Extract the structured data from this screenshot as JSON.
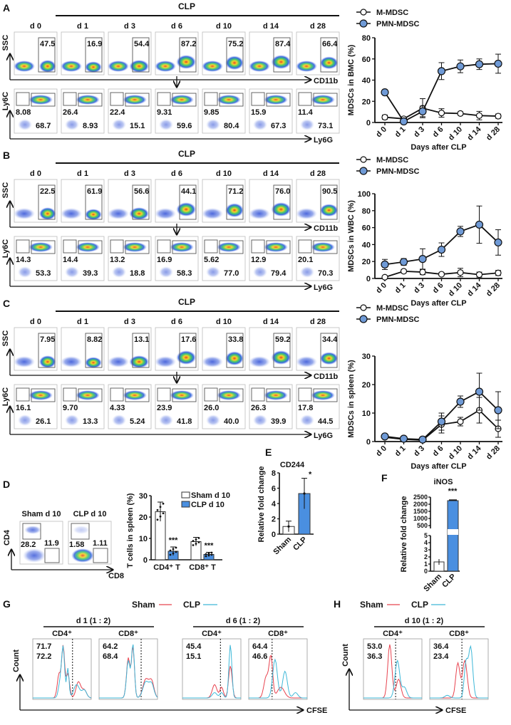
{
  "colors": {
    "m_mdsc": "#ffffff",
    "pmn_mdsc": "#6f9ad6",
    "sham_bar": "#ffffff",
    "clp_bar": "#4a8fe0",
    "sham_line": "#e8434f",
    "clp_line": "#3fb8d8",
    "sham_text": "#e0202a",
    "clp_text": "#2ba7d6"
  },
  "flow_panels": [
    {
      "label": "A",
      "group": "CLP",
      "days": [
        "d 0",
        "d 1",
        "d 3",
        "d 6",
        "d 10",
        "d 14",
        "d 28"
      ],
      "top_values": [
        "47.5",
        "16.9",
        "54.4",
        "87.2",
        "75.2",
        "87.4",
        "66.4"
      ],
      "bottom_left": [
        "8.08",
        "26.4",
        "22.4",
        "9.31",
        "9.85",
        "15.9",
        "11.4"
      ],
      "bottom_right": [
        "68.7",
        "8.93",
        "15.1",
        "59.6",
        "80.4",
        "67.3",
        "73.1"
      ],
      "y_top": "SSC",
      "x_top": "CD11b",
      "y_bottom": "Ly6C",
      "x_bottom": "Ly6G"
    },
    {
      "label": "B",
      "group": "CLP",
      "days": [
        "d 0",
        "d 1",
        "d 3",
        "d 6",
        "d 10",
        "d 14",
        "d 28"
      ],
      "top_values": [
        "22.5",
        "61.9",
        "56.6",
        "44.1",
        "71.2",
        "76.0",
        "90.5"
      ],
      "bottom_left": [
        "14.3",
        "14.4",
        "13.2",
        "16.9",
        "5.62",
        "12.9",
        "20.1"
      ],
      "bottom_right": [
        "53.3",
        "39.3",
        "18.8",
        "58.3",
        "77.0",
        "79.4",
        "70.3"
      ],
      "y_top": "SSC",
      "x_top": "CD11b",
      "y_bottom": "Ly6C",
      "x_bottom": "Ly6G"
    },
    {
      "label": "C",
      "group": "CLP",
      "days": [
        "d 0",
        "d 1",
        "d 3",
        "d 6",
        "d 10",
        "d 14",
        "d 28"
      ],
      "top_values": [
        "7.95",
        "8.82",
        "13.1",
        "17.6",
        "33.8",
        "59.2",
        "34.4"
      ],
      "bottom_left": [
        "16.1",
        "9.70",
        "4.33",
        "23.9",
        "26.0",
        "26.3",
        "17.8"
      ],
      "bottom_right": [
        "26.1",
        "13.3",
        "5.24",
        "41.8",
        "40.0",
        "39.9",
        "44.5"
      ],
      "y_top": "SSC",
      "x_top": "CD11b",
      "y_bottom": "Ly6C",
      "x_bottom": "Ly6G"
    }
  ],
  "chart_data": [
    {
      "panel": "A",
      "type": "line",
      "categories": [
        "d 0",
        "d 1",
        "d 3",
        "d 6",
        "d 10",
        "d 14",
        "d 28"
      ],
      "xlabel": "Days after CLP",
      "ylabel": "MDSCs in BMC (%)",
      "ylim": [
        0,
        80
      ],
      "yticks": [
        0,
        20,
        40,
        60,
        80
      ],
      "legend": "top-left",
      "series": [
        {
          "name": "M-MDSC",
          "values": [
            5,
            3.5,
            13.5,
            9,
            8.5,
            6.5,
            6
          ],
          "errors": [
            2,
            1,
            9,
            4,
            1.5,
            4,
            2
          ]
        },
        {
          "name": "PMN-MDSC",
          "values": [
            28.5,
            1,
            10.5,
            48.5,
            53,
            55,
            55.5
          ],
          "errors": [
            1,
            1,
            5,
            8,
            6,
            5,
            9
          ]
        }
      ]
    },
    {
      "panel": "B",
      "type": "line",
      "categories": [
        "d 0",
        "d 1",
        "d 3",
        "d 6",
        "d 10",
        "d 14",
        "d 28"
      ],
      "xlabel": "Days after CLP",
      "ylabel": "MDSCs in WBC (%)",
      "ylim": [
        0,
        100
      ],
      "yticks": [
        0,
        20,
        40,
        60,
        80,
        100
      ],
      "legend": "top-left",
      "series": [
        {
          "name": "M-MDSC",
          "values": [
            1.5,
            8.5,
            7.5,
            5,
            7,
            4.5,
            6.5
          ],
          "errors": [
            1,
            2,
            3,
            2,
            5,
            3,
            3
          ]
        },
        {
          "name": "PMN-MDSC",
          "values": [
            16.5,
            19.5,
            23,
            34,
            55.5,
            63.5,
            42.5
          ],
          "errors": [
            6,
            4,
            12,
            8,
            6,
            22,
            15
          ]
        }
      ]
    },
    {
      "panel": "C",
      "type": "line",
      "categories": [
        "d 0",
        "d 1",
        "d 3",
        "d 6",
        "d 10",
        "d 14",
        "d 28"
      ],
      "xlabel": "Days after CLP",
      "ylabel": "MDSCs in spleen (%)",
      "ylim": [
        0,
        30
      ],
      "yticks": [
        0,
        10,
        20,
        30
      ],
      "legend": "top-left",
      "series": [
        {
          "name": "M-MDSC",
          "values": [
            1.5,
            0.8,
            0.5,
            6,
            7,
            11,
            4.5
          ],
          "errors": [
            0.5,
            0.3,
            0.3,
            3,
            1.5,
            4.5,
            3
          ]
        },
        {
          "name": "PMN-MDSC",
          "values": [
            1.8,
            1,
            0.7,
            7,
            14,
            17.5,
            11
          ],
          "errors": [
            0.5,
            0.3,
            0.3,
            3,
            2,
            6.5,
            6.5
          ]
        }
      ]
    },
    {
      "panel": "D",
      "type": "bar",
      "categories": [
        "CD4⁺ T",
        "CD8⁺ T"
      ],
      "ylabel": "T cells in spleen (%)",
      "ylim": [
        0,
        30
      ],
      "yticks": [
        0,
        10,
        20,
        30
      ],
      "legend": "top-right",
      "series": [
        {
          "name": "Sham d 10",
          "values": [
            22.5,
            8.5
          ],
          "errors": [
            4.5,
            2
          ]
        },
        {
          "name": "CLP d 10",
          "values": [
            4,
            2.5
          ],
          "errors": [
            2,
            1
          ]
        }
      ],
      "significance": [
        "***",
        "***"
      ],
      "sham_marks": [
        "*",
        "*"
      ]
    },
    {
      "panel": "E",
      "type": "bar",
      "title": "CD244",
      "categories": [
        "Sham",
        "CLP"
      ],
      "ylabel": "Relative fold change",
      "ylim": [
        0,
        8
      ],
      "yticks": [
        0,
        2,
        4,
        6,
        8
      ],
      "values": [
        1.0,
        5.3
      ],
      "errors": [
        0.7,
        2.0
      ],
      "significance": [
        "",
        "*"
      ]
    },
    {
      "panel": "F",
      "type": "bar",
      "title": "iNOS",
      "categories": [
        "Sham",
        "CLP"
      ],
      "ylabel": "Relative fold change",
      "axis_break": true,
      "yticks_lower": [
        0,
        1,
        2,
        3,
        4,
        5
      ],
      "yticks_upper": [
        500,
        1000,
        1500,
        2000,
        2500
      ],
      "values": [
        1.3,
        2250
      ],
      "errors": [
        0.4,
        40
      ],
      "significance": [
        "",
        "***"
      ]
    }
  ],
  "panel_d_flow": {
    "label": "D",
    "groups": [
      "Sham d 10",
      "CLP d 10"
    ],
    "values": [
      [
        "28.2",
        "11.9"
      ],
      [
        "1.58",
        "1.11"
      ]
    ],
    "y_axis": "CD4",
    "x_axis": "CD8"
  },
  "panel_g": {
    "label": "G",
    "legend": [
      "Sham",
      "CLP"
    ],
    "y_axis": "Count",
    "x_axis": "CFSE",
    "conditions": [
      {
        "title": "d 1 (1 : 2)",
        "plots": [
          {
            "title": "CD4⁺",
            "sham": "71.7",
            "clp": "72.2"
          },
          {
            "title": "CD8⁺",
            "sham": "64.2",
            "clp": "68.4"
          }
        ]
      },
      {
        "title": "d 6 (1 : 2)",
        "plots": [
          {
            "title": "CD4⁺",
            "sham": "45.4",
            "clp": "15.1"
          },
          {
            "title": "CD8⁺",
            "sham": "64.4",
            "clp": "46.6"
          }
        ]
      }
    ]
  },
  "panel_h": {
    "label": "H",
    "legend": [
      "Sham",
      "CLP"
    ],
    "y_axis": "Count",
    "x_axis": "CFSE",
    "conditions": [
      {
        "title": "d 10 (1 : 2)",
        "plots": [
          {
            "title": "CD4⁺",
            "sham": "53.0",
            "clp": "36.3"
          },
          {
            "title": "CD8⁺",
            "sham": "36.4",
            "clp": "23.4"
          }
        ]
      }
    ]
  }
}
